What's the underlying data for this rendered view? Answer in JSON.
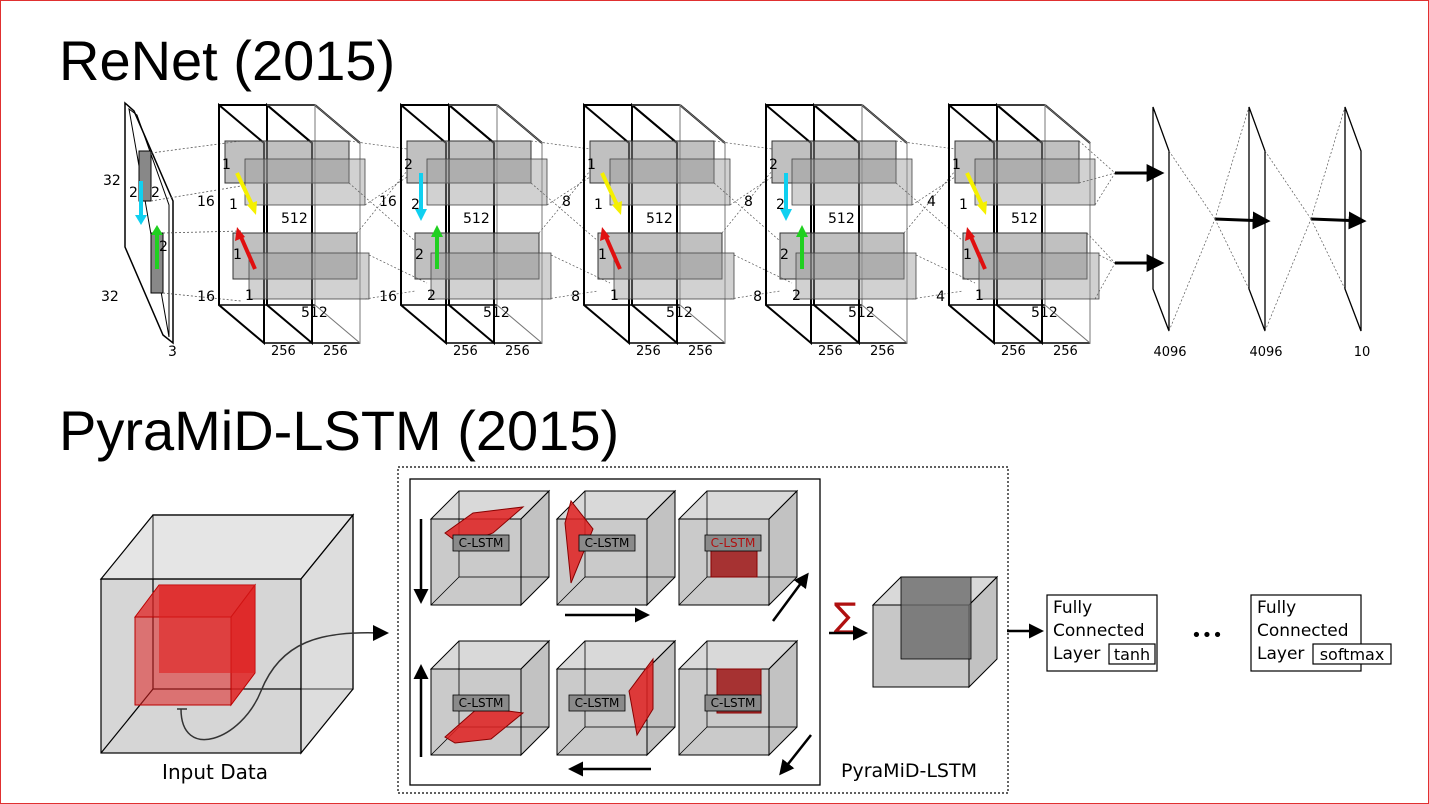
{
  "slide": {
    "title_renet": "ReNet (2015)",
    "title_pyramid": "PyraMiD-LSTM (2015)",
    "border_color": "#e03030"
  },
  "renet": {
    "input": {
      "height": "32",
      "width": "32",
      "channels": "3",
      "patch_top": "2",
      "patch_bottom": "2",
      "patch_side": "2"
    },
    "stages": [
      {
        "side": "16",
        "patch_top": "1",
        "patch_bottom": "1",
        "rnn_top": "1",
        "rnn_bottom": "1",
        "arrow_top": "yellow",
        "arrow_bottom": "red",
        "size_top": "512",
        "size_bottom": "512",
        "out_a": "256",
        "out_b": "256"
      },
      {
        "side": "16",
        "patch_top": "2",
        "patch_bottom": "2",
        "rnn_top": "2",
        "rnn_bottom": "2",
        "arrow_top": "cyan",
        "arrow_bottom": "green",
        "size_top": "512",
        "size_bottom": "512",
        "out_a": "256",
        "out_b": "256"
      },
      {
        "side": "8",
        "patch_top": "1",
        "patch_bottom": "1",
        "rnn_top": "1",
        "rnn_bottom": "1",
        "arrow_top": "yellow",
        "arrow_bottom": "red",
        "size_top": "512",
        "size_bottom": "512",
        "out_a": "256",
        "out_b": "256"
      },
      {
        "side": "8",
        "patch_top": "2",
        "patch_bottom": "2",
        "rnn_top": "2",
        "rnn_bottom": "2",
        "arrow_top": "cyan",
        "arrow_bottom": "green",
        "size_top": "512",
        "size_bottom": "512",
        "out_a": "256",
        "out_b": "256"
      },
      {
        "side": "4",
        "patch_top": "1",
        "patch_bottom": "1",
        "rnn_top": "1",
        "rnn_bottom": "1",
        "arrow_top": "yellow",
        "arrow_bottom": "red",
        "size_top": "512",
        "size_bottom": "512",
        "out_a": "256",
        "out_b": "256"
      }
    ],
    "fc_layers": [
      "4096",
      "4096",
      "10"
    ],
    "arrow_colors": {
      "yellow": "#f5f000",
      "red": "#e01010",
      "cyan": "#10d0f0",
      "green": "#20d020"
    }
  },
  "pyramid": {
    "input_label": "Input Data",
    "clstm_label": "C-LSTM",
    "module_label": "PyraMiD-LSTM",
    "sum_symbol": "∑",
    "fc1": {
      "line1": "Fully",
      "line2": "Connected",
      "line3": "Layer",
      "activation": "tanh"
    },
    "ellipsis": "•••",
    "fc2": {
      "line1": "Fully",
      "line2": "Connected",
      "line3": "Layer",
      "activation": "softmax"
    },
    "colors": {
      "red": "#e02020",
      "dark_red": "#a01818",
      "cube_gray": "#b4b4b4",
      "cube_dark": "#6a6a6a"
    }
  }
}
